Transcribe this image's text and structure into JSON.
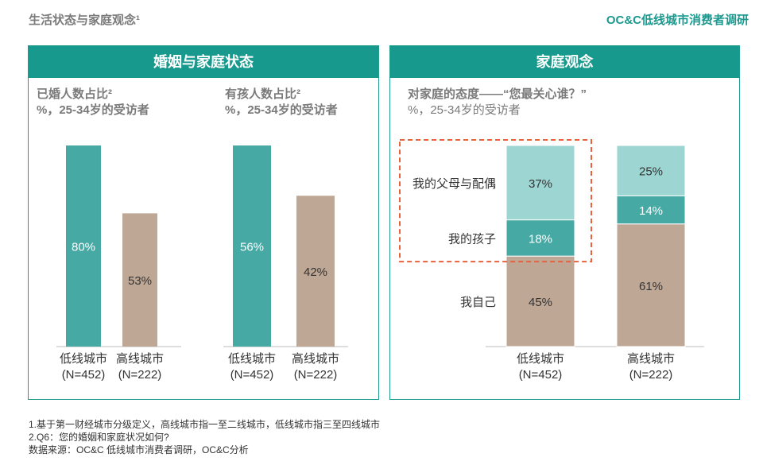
{
  "page_title": "生活状态与家庭观念¹",
  "report_title": "OC&C低线城市消费者调研",
  "colors": {
    "teal_header": "#17998d",
    "teal_dark": "#47a9a4",
    "teal_light": "#9dd5d3",
    "tan": "#bfa795",
    "highlight": "#e8623d"
  },
  "left_panel": {
    "header": "婚姻与家庭状态",
    "charts": [
      {
        "subtitle1": "已婚人数占比²",
        "subtitle2": "%，25-34岁的受访者"
      },
      {
        "subtitle1": "有孩人数占比²",
        "subtitle2": "%，25-34岁的受访者"
      }
    ]
  },
  "right_panel": {
    "header": "家庭观念",
    "subtitle1": "对家庭的态度——“您最关心谁？”",
    "subtitle2": "%，25-34岁的受访者"
  },
  "chart_data": [
    {
      "type": "bar",
      "categories": [
        "低线城市",
        "高线城市"
      ],
      "category_n": [
        "(N=452)",
        "(N=222)"
      ],
      "values": [
        80,
        53
      ],
      "value_labels": [
        "80%",
        "53%"
      ],
      "colors": [
        "#47a9a4",
        "#bfa795"
      ],
      "title": "已婚人数占比²",
      "ylim": [
        0,
        80
      ]
    },
    {
      "type": "bar",
      "categories": [
        "低线城市",
        "高线城市"
      ],
      "category_n": [
        "(N=452)",
        "(N=222)"
      ],
      "values": [
        56,
        42
      ],
      "value_labels": [
        "56%",
        "42%"
      ],
      "colors": [
        "#47a9a4",
        "#bfa795"
      ],
      "title": "有孩人数占比²",
      "ylim": [
        0,
        56
      ]
    },
    {
      "type": "bar",
      "stacked": true,
      "categories": [
        "低线城市",
        "高线城市"
      ],
      "category_n": [
        "(N=452)",
        "(N=222)"
      ],
      "series": [
        {
          "name": "我自己",
          "values": [
            45,
            61
          ],
          "labels": [
            "45%",
            "61%"
          ],
          "color": "#bfa795"
        },
        {
          "name": "我的孩子",
          "values": [
            18,
            14
          ],
          "labels": [
            "18%",
            "14%"
          ],
          "color": "#47a9a4"
        },
        {
          "name": "我的父母与配偶",
          "values": [
            37,
            25
          ],
          "labels": [
            "37%",
            "25%"
          ],
          "color": "#9dd5d3"
        }
      ],
      "ylim": [
        0,
        100
      ],
      "highlight": "我的父母与配偶 + 我的孩子 (低线城市)"
    }
  ],
  "footnotes": [
    "1.基于第一财经城市分级定义，高线城市指一至二线城市，低线城市指三至四线城市",
    "2.Q6：您的婚姻和家庭状况如何?",
    "数据来源：OC&C 低线城市消费者调研，OC&C分析"
  ]
}
